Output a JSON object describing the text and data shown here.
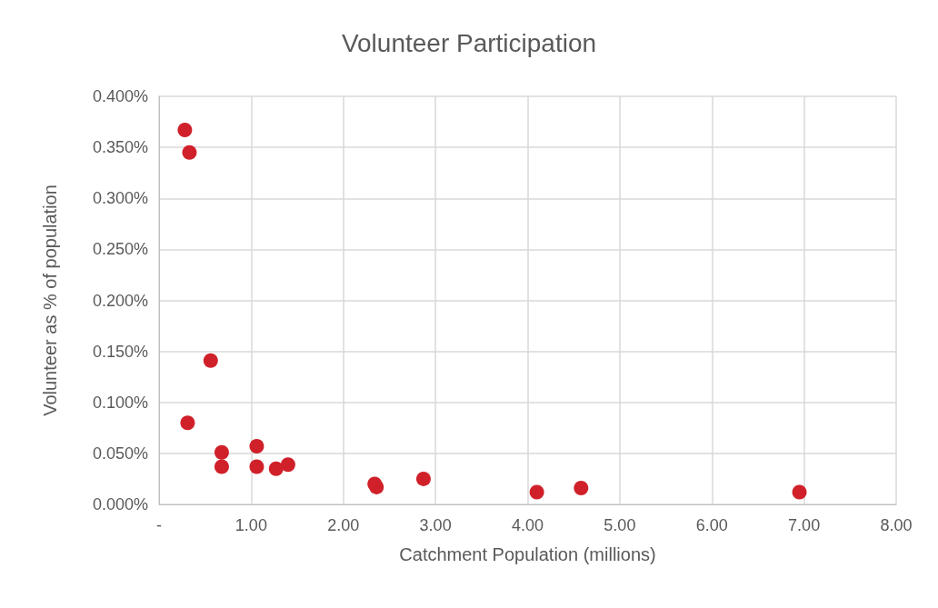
{
  "chart_data": {
    "type": "scatter",
    "title": "Volunteer Participation",
    "xlabel": "Catchment Population (millions)",
    "ylabel": "Volunteer as % of population",
    "x": [
      0.28,
      0.33,
      0.56,
      0.31,
      0.68,
      0.68,
      1.06,
      1.06,
      1.27,
      1.4,
      2.34,
      2.36,
      2.87,
      4.1,
      4.58,
      6.95
    ],
    "values": [
      0.367,
      0.345,
      0.141,
      0.08,
      0.051,
      0.037,
      0.057,
      0.037,
      0.035,
      0.039,
      0.02,
      0.017,
      0.025,
      0.012,
      0.016,
      0.012
    ],
    "color": "#d0212a",
    "marker": "circle",
    "grid": true,
    "xlim": [
      0,
      8
    ],
    "xticks": [
      {
        "value": 0,
        "label": "-"
      },
      {
        "value": 1,
        "label": "1.00"
      },
      {
        "value": 2,
        "label": "2.00"
      },
      {
        "value": 3,
        "label": "3.00"
      },
      {
        "value": 4,
        "label": "4.00"
      },
      {
        "value": 5,
        "label": "5.00"
      },
      {
        "value": 6,
        "label": "6.00"
      },
      {
        "value": 7,
        "label": "7.00"
      },
      {
        "value": 8,
        "label": "8.00"
      }
    ],
    "ylim": [
      0,
      0.4
    ],
    "yticks": [
      {
        "value": 0,
        "label": "0.000%"
      },
      {
        "value": 0.05,
        "label": "0.050%"
      },
      {
        "value": 0.1,
        "label": "0.100%"
      },
      {
        "value": 0.15,
        "label": "0.150%"
      },
      {
        "value": 0.2,
        "label": "0.200%"
      },
      {
        "value": 0.25,
        "label": "0.250%"
      },
      {
        "value": 0.3,
        "label": "0.300%"
      },
      {
        "value": 0.35,
        "label": "0.350%"
      },
      {
        "value": 0.4,
        "label": "0.400%"
      }
    ]
  }
}
